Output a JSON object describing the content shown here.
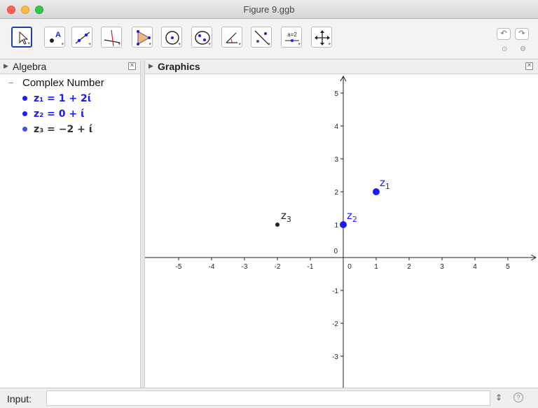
{
  "window": {
    "title": "Figure 9.ggb"
  },
  "toolbar": {
    "tools": [
      {
        "id": "move",
        "name": "move-tool"
      },
      {
        "id": "point",
        "name": "point-tool"
      },
      {
        "id": "line",
        "name": "line-tool"
      },
      {
        "id": "perpendicular",
        "name": "perpendicular-line-tool"
      },
      {
        "id": "polygon",
        "name": "polygon-tool"
      },
      {
        "id": "circle",
        "name": "circle-tool"
      },
      {
        "id": "conic",
        "name": "conic-tool"
      },
      {
        "id": "angle",
        "name": "angle-tool"
      },
      {
        "id": "reflect",
        "name": "reflect-tool"
      },
      {
        "id": "slider",
        "name": "slider-tool",
        "label": "a=2"
      },
      {
        "id": "move_graphics",
        "name": "move-graphics-tool"
      }
    ],
    "undo_icon": "undo-icon",
    "redo_icon": "redo-icon"
  },
  "algebra": {
    "title": "Algebra",
    "category": "Complex Number",
    "items": [
      {
        "name": "z1",
        "label": "z₁ = 1 + 2ί",
        "color": "#1a1aff"
      },
      {
        "name": "z2",
        "label": "z₂ = 0 + ί",
        "color": "#1a1aff"
      },
      {
        "name": "z3",
        "label": "z₃ = −2 + ί",
        "color": "#333333"
      }
    ]
  },
  "graphics": {
    "title": "Graphics",
    "axes": {
      "xlim": [
        -5.7,
        5.8
      ],
      "ylim": [
        -4,
        5.3
      ],
      "x_ticks": [
        "-5",
        "-4",
        "-3",
        "-2",
        "-1",
        "1",
        "2",
        "3",
        "4",
        "5"
      ],
      "y_ticks": [
        "5",
        "4",
        "3",
        "2",
        "1",
        "-1",
        "-2",
        "-3"
      ],
      "origin_label": "0"
    },
    "points": [
      {
        "label": "z",
        "sub": "1",
        "x": 1,
        "y": 2,
        "color": "#1a1aff",
        "size": "large"
      },
      {
        "label": "z",
        "sub": "2",
        "x": 0,
        "y": 1,
        "color": "#1a1aff",
        "size": "large"
      },
      {
        "label": "z",
        "sub": "3",
        "x": -2,
        "y": 1,
        "color": "#222222",
        "size": "small"
      }
    ]
  },
  "input_bar": {
    "label": "Input:",
    "value": "",
    "symbols_icon": "⇕",
    "help_icon": "?"
  }
}
